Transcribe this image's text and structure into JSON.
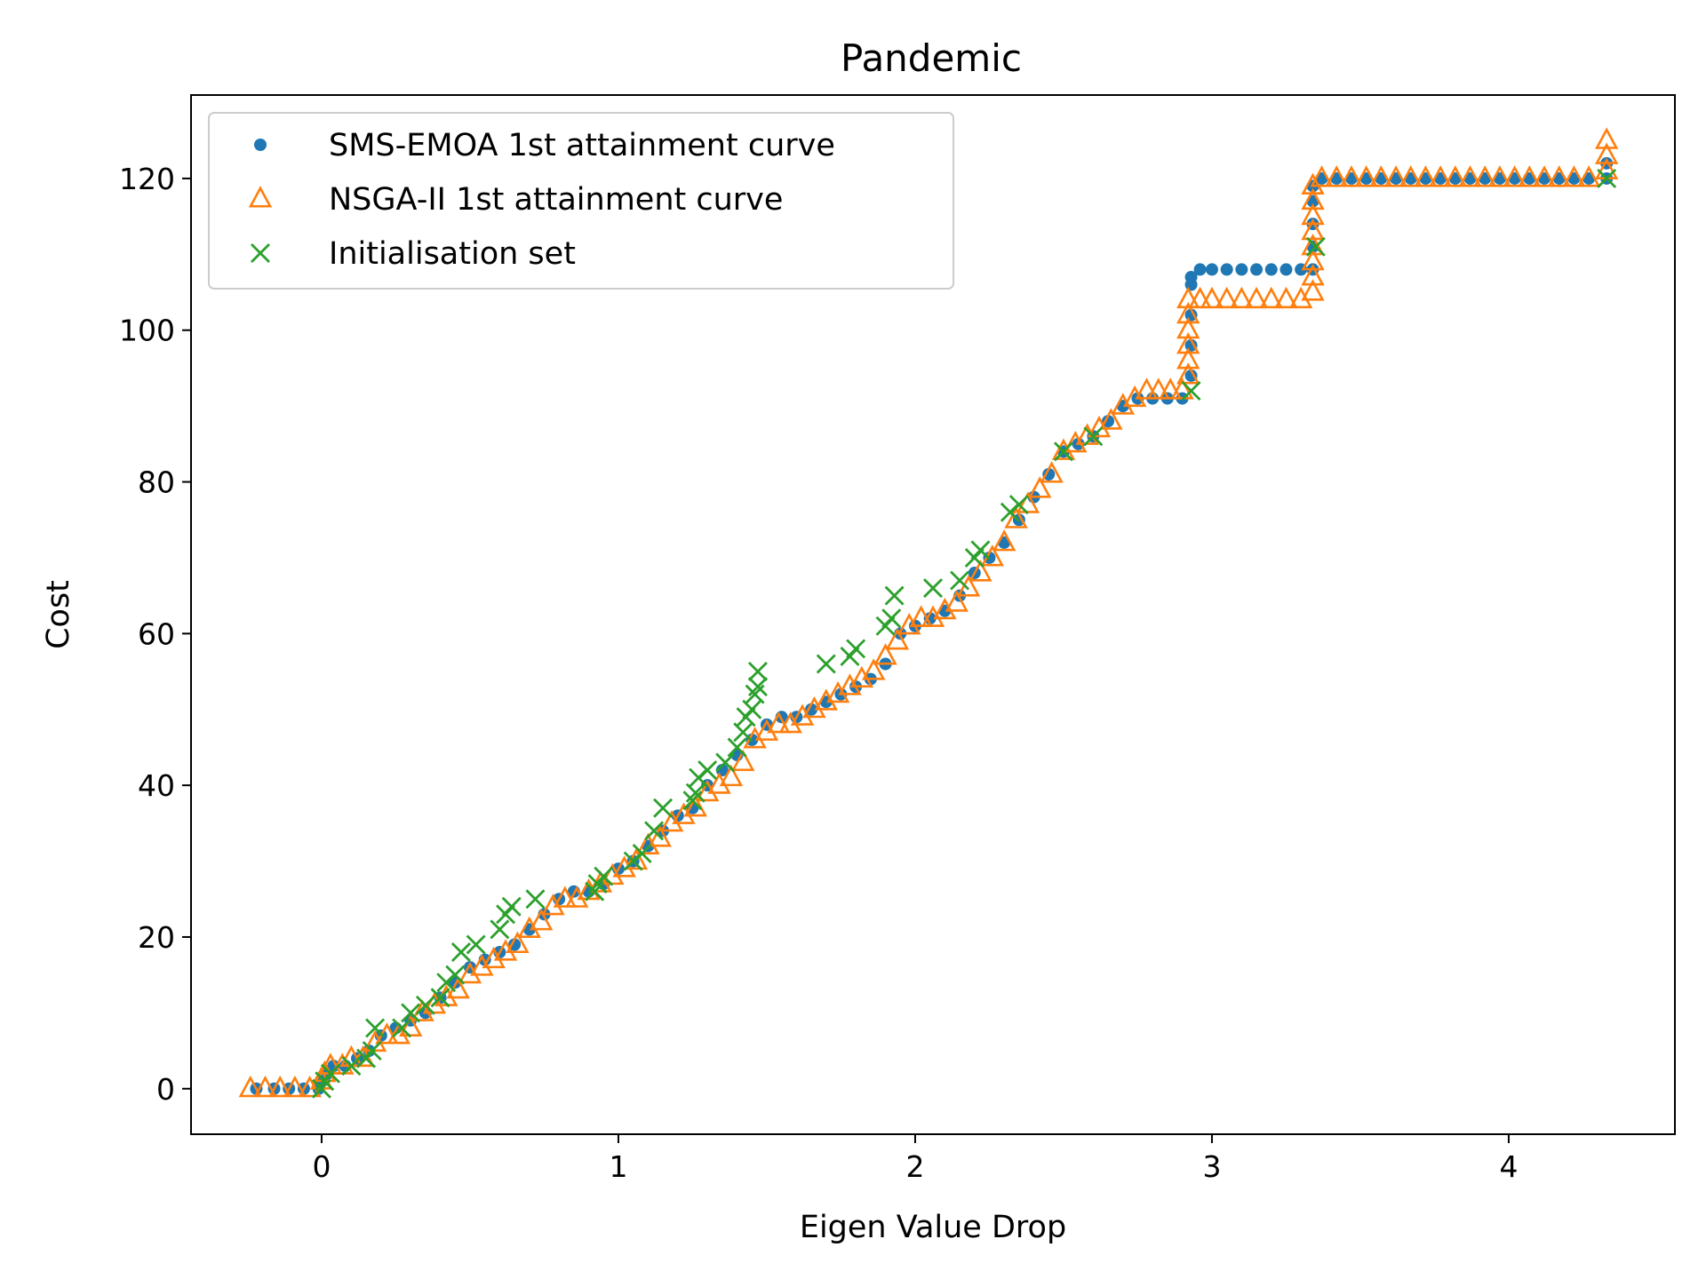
{
  "chart_data": {
    "type": "scatter",
    "title": "Pandemic",
    "xlabel": "Eigen Value Drop",
    "ylabel": "Cost",
    "xlim": [
      -0.44,
      4.56
    ],
    "ylim": [
      -6,
      131
    ],
    "xticks": [
      0,
      1,
      2,
      3,
      4
    ],
    "yticks": [
      0,
      20,
      40,
      60,
      80,
      100,
      120
    ],
    "legend_position": "top-left",
    "grid": false,
    "series": [
      {
        "name": "SMS-EMOA 1st attainment curve",
        "marker": "dot",
        "color": "#1f77b4",
        "points": [
          [
            -0.22,
            0
          ],
          [
            -0.16,
            0
          ],
          [
            -0.11,
            0
          ],
          [
            -0.06,
            0
          ],
          [
            -0.01,
            0
          ],
          [
            0.0,
            1
          ],
          [
            0.02,
            2
          ],
          [
            0.04,
            3
          ],
          [
            0.08,
            3
          ],
          [
            0.12,
            4
          ],
          [
            0.16,
            5
          ],
          [
            0.2,
            7
          ],
          [
            0.25,
            8
          ],
          [
            0.3,
            9
          ],
          [
            0.35,
            10
          ],
          [
            0.4,
            12
          ],
          [
            0.45,
            14
          ],
          [
            0.5,
            16
          ],
          [
            0.55,
            17
          ],
          [
            0.6,
            18
          ],
          [
            0.65,
            19
          ],
          [
            0.7,
            21
          ],
          [
            0.75,
            23
          ],
          [
            0.8,
            25
          ],
          [
            0.85,
            26
          ],
          [
            0.9,
            26
          ],
          [
            0.95,
            27
          ],
          [
            1.0,
            29
          ],
          [
            1.05,
            30
          ],
          [
            1.1,
            32
          ],
          [
            1.15,
            34
          ],
          [
            1.2,
            36
          ],
          [
            1.25,
            37
          ],
          [
            1.3,
            40
          ],
          [
            1.35,
            42
          ],
          [
            1.4,
            44
          ],
          [
            1.45,
            46
          ],
          [
            1.5,
            48
          ],
          [
            1.55,
            49
          ],
          [
            1.6,
            49
          ],
          [
            1.65,
            50
          ],
          [
            1.7,
            51
          ],
          [
            1.75,
            52
          ],
          [
            1.8,
            53
          ],
          [
            1.85,
            54
          ],
          [
            1.9,
            56
          ],
          [
            1.95,
            60
          ],
          [
            2.0,
            61
          ],
          [
            2.05,
            62
          ],
          [
            2.1,
            63
          ],
          [
            2.15,
            65
          ],
          [
            2.2,
            68
          ],
          [
            2.25,
            70
          ],
          [
            2.3,
            72
          ],
          [
            2.35,
            75
          ],
          [
            2.4,
            78
          ],
          [
            2.45,
            81
          ],
          [
            2.5,
            84
          ],
          [
            2.55,
            85
          ],
          [
            2.6,
            86
          ],
          [
            2.65,
            88
          ],
          [
            2.7,
            90
          ],
          [
            2.75,
            91
          ],
          [
            2.8,
            91
          ],
          [
            2.85,
            91
          ],
          [
            2.9,
            91
          ],
          [
            2.93,
            94
          ],
          [
            2.93,
            98
          ],
          [
            2.93,
            102
          ],
          [
            2.93,
            106
          ],
          [
            2.93,
            107
          ],
          [
            2.96,
            108
          ],
          [
            3.0,
            108
          ],
          [
            3.05,
            108
          ],
          [
            3.1,
            108
          ],
          [
            3.15,
            108
          ],
          [
            3.2,
            108
          ],
          [
            3.25,
            108
          ],
          [
            3.3,
            108
          ],
          [
            3.34,
            108
          ],
          [
            3.34,
            111
          ],
          [
            3.34,
            114
          ],
          [
            3.34,
            117
          ],
          [
            3.34,
            119
          ],
          [
            3.37,
            120
          ],
          [
            3.42,
            120
          ],
          [
            3.47,
            120
          ],
          [
            3.52,
            120
          ],
          [
            3.57,
            120
          ],
          [
            3.62,
            120
          ],
          [
            3.67,
            120
          ],
          [
            3.72,
            120
          ],
          [
            3.77,
            120
          ],
          [
            3.82,
            120
          ],
          [
            3.87,
            120
          ],
          [
            3.92,
            120
          ],
          [
            3.97,
            120
          ],
          [
            4.02,
            120
          ],
          [
            4.07,
            120
          ],
          [
            4.12,
            120
          ],
          [
            4.17,
            120
          ],
          [
            4.22,
            120
          ],
          [
            4.27,
            120
          ],
          [
            4.33,
            120
          ],
          [
            4.33,
            122
          ]
        ]
      },
      {
        "name": "NSGA-II 1st attainment curve",
        "marker": "triangle-open",
        "color": "#ff7f0e",
        "points": [
          [
            -0.24,
            0
          ],
          [
            -0.19,
            0
          ],
          [
            -0.14,
            0
          ],
          [
            -0.09,
            0
          ],
          [
            -0.04,
            0
          ],
          [
            0.0,
            1
          ],
          [
            0.01,
            2
          ],
          [
            0.03,
            3
          ],
          [
            0.07,
            3
          ],
          [
            0.1,
            4
          ],
          [
            0.14,
            4
          ],
          [
            0.18,
            6
          ],
          [
            0.22,
            7
          ],
          [
            0.26,
            7
          ],
          [
            0.3,
            8
          ],
          [
            0.34,
            10
          ],
          [
            0.38,
            11
          ],
          [
            0.42,
            12
          ],
          [
            0.46,
            13
          ],
          [
            0.5,
            15
          ],
          [
            0.54,
            16
          ],
          [
            0.58,
            17
          ],
          [
            0.62,
            18
          ],
          [
            0.66,
            19
          ],
          [
            0.7,
            21
          ],
          [
            0.74,
            22
          ],
          [
            0.78,
            24
          ],
          [
            0.82,
            25
          ],
          [
            0.86,
            25
          ],
          [
            0.9,
            26
          ],
          [
            0.94,
            27
          ],
          [
            0.98,
            28
          ],
          [
            1.02,
            29
          ],
          [
            1.06,
            30
          ],
          [
            1.1,
            32
          ],
          [
            1.14,
            33
          ],
          [
            1.18,
            35
          ],
          [
            1.22,
            36
          ],
          [
            1.26,
            37
          ],
          [
            1.3,
            39
          ],
          [
            1.34,
            40
          ],
          [
            1.38,
            41
          ],
          [
            1.42,
            43
          ],
          [
            1.46,
            46
          ],
          [
            1.5,
            47
          ],
          [
            1.54,
            48
          ],
          [
            1.58,
            48
          ],
          [
            1.62,
            49
          ],
          [
            1.66,
            50
          ],
          [
            1.7,
            51
          ],
          [
            1.74,
            52
          ],
          [
            1.78,
            53
          ],
          [
            1.82,
            54
          ],
          [
            1.86,
            55
          ],
          [
            1.9,
            57
          ],
          [
            1.94,
            59
          ],
          [
            1.98,
            61
          ],
          [
            2.02,
            62
          ],
          [
            2.06,
            62
          ],
          [
            2.1,
            63
          ],
          [
            2.14,
            64
          ],
          [
            2.18,
            66
          ],
          [
            2.22,
            68
          ],
          [
            2.26,
            70
          ],
          [
            2.3,
            72
          ],
          [
            2.34,
            75
          ],
          [
            2.38,
            77
          ],
          [
            2.42,
            79
          ],
          [
            2.46,
            81
          ],
          [
            2.5,
            84
          ],
          [
            2.54,
            85
          ],
          [
            2.58,
            86
          ],
          [
            2.62,
            87
          ],
          [
            2.66,
            88
          ],
          [
            2.7,
            90
          ],
          [
            2.74,
            91
          ],
          [
            2.78,
            92
          ],
          [
            2.82,
            92
          ],
          [
            2.86,
            92
          ],
          [
            2.9,
            92
          ],
          [
            2.92,
            94
          ],
          [
            2.92,
            96
          ],
          [
            2.92,
            98
          ],
          [
            2.92,
            100
          ],
          [
            2.92,
            102
          ],
          [
            2.92,
            104
          ],
          [
            2.96,
            104
          ],
          [
            3.0,
            104
          ],
          [
            3.05,
            104
          ],
          [
            3.1,
            104
          ],
          [
            3.15,
            104
          ],
          [
            3.2,
            104
          ],
          [
            3.25,
            104
          ],
          [
            3.3,
            104
          ],
          [
            3.34,
            105
          ],
          [
            3.34,
            107
          ],
          [
            3.34,
            109
          ],
          [
            3.34,
            111
          ],
          [
            3.34,
            113
          ],
          [
            3.34,
            115
          ],
          [
            3.34,
            117
          ],
          [
            3.34,
            119
          ],
          [
            3.37,
            120
          ],
          [
            3.42,
            120
          ],
          [
            3.47,
            120
          ],
          [
            3.52,
            120
          ],
          [
            3.57,
            120
          ],
          [
            3.62,
            120
          ],
          [
            3.67,
            120
          ],
          [
            3.72,
            120
          ],
          [
            3.77,
            120
          ],
          [
            3.82,
            120
          ],
          [
            3.87,
            120
          ],
          [
            3.92,
            120
          ],
          [
            3.97,
            120
          ],
          [
            4.02,
            120
          ],
          [
            4.07,
            120
          ],
          [
            4.12,
            120
          ],
          [
            4.17,
            120
          ],
          [
            4.22,
            120
          ],
          [
            4.27,
            120
          ],
          [
            4.33,
            121
          ],
          [
            4.33,
            123
          ],
          [
            4.33,
            125
          ]
        ]
      },
      {
        "name": "Initialisation set",
        "marker": "x",
        "color": "#2ca02c",
        "points": [
          [
            0.0,
            0
          ],
          [
            0.01,
            1
          ],
          [
            0.03,
            2
          ],
          [
            0.1,
            3
          ],
          [
            0.15,
            4
          ],
          [
            0.17,
            5
          ],
          [
            0.18,
            8
          ],
          [
            0.27,
            8
          ],
          [
            0.3,
            10
          ],
          [
            0.35,
            11
          ],
          [
            0.4,
            12
          ],
          [
            0.42,
            14
          ],
          [
            0.45,
            15
          ],
          [
            0.47,
            18
          ],
          [
            0.52,
            19
          ],
          [
            0.6,
            21
          ],
          [
            0.62,
            23
          ],
          [
            0.64,
            24
          ],
          [
            0.72,
            25
          ],
          [
            0.92,
            26
          ],
          [
            0.93,
            27
          ],
          [
            0.95,
            28
          ],
          [
            1.05,
            30
          ],
          [
            1.08,
            31
          ],
          [
            1.12,
            34
          ],
          [
            1.15,
            37
          ],
          [
            1.25,
            38
          ],
          [
            1.26,
            39
          ],
          [
            1.27,
            41
          ],
          [
            1.3,
            42
          ],
          [
            1.36,
            43
          ],
          [
            1.4,
            45
          ],
          [
            1.42,
            47
          ],
          [
            1.43,
            49
          ],
          [
            1.45,
            50
          ],
          [
            1.46,
            52
          ],
          [
            1.47,
            53
          ],
          [
            1.47,
            55
          ],
          [
            1.7,
            56
          ],
          [
            1.78,
            57
          ],
          [
            1.8,
            58
          ],
          [
            1.9,
            61
          ],
          [
            1.92,
            62
          ],
          [
            1.93,
            65
          ],
          [
            2.06,
            66
          ],
          [
            2.15,
            67
          ],
          [
            2.2,
            70
          ],
          [
            2.22,
            71
          ],
          [
            2.32,
            76
          ],
          [
            2.35,
            77
          ],
          [
            2.5,
            84
          ],
          [
            2.6,
            86
          ],
          [
            2.93,
            92
          ],
          [
            3.35,
            111
          ],
          [
            4.33,
            120
          ]
        ]
      }
    ]
  }
}
